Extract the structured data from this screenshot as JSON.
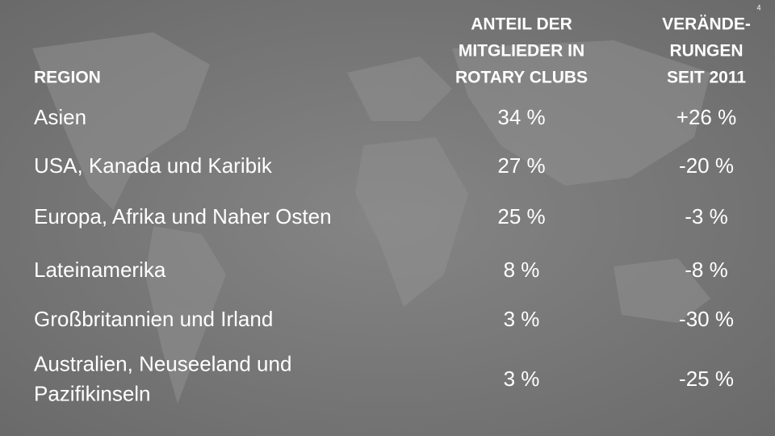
{
  "page_number": "4",
  "table": {
    "header": [
      [
        "REGION"
      ],
      [
        "ANTEIL DER",
        "MITGLIEDER IN",
        "ROTARY CLUBS"
      ],
      [
        "VERÄNDE-",
        "RUNGEN",
        "SEIT 2011"
      ]
    ],
    "rows": [
      [
        [
          "Asien"
        ],
        [
          "34 %"
        ],
        [
          "+26 %"
        ]
      ],
      [
        [
          "USA, Kanada und Karibik"
        ],
        [
          "27 %"
        ],
        [
          "-20 %"
        ]
      ],
      [
        [
          "Europa, Afrika und Naher Osten"
        ],
        [
          "25 %"
        ],
        [
          "-3 %"
        ]
      ],
      [
        [
          "Lateinamerika"
        ],
        [
          "8 %"
        ],
        [
          "-8 %"
        ]
      ],
      [
        [
          "Großbritannien und Irland"
        ],
        [
          "3 %"
        ],
        [
          "-30 %"
        ]
      ],
      [
        [
          "Australien, Neuseeland und",
          "Pazifikinseln"
        ],
        [
          "3 %"
        ],
        [
          "-25 %"
        ]
      ]
    ]
  }
}
